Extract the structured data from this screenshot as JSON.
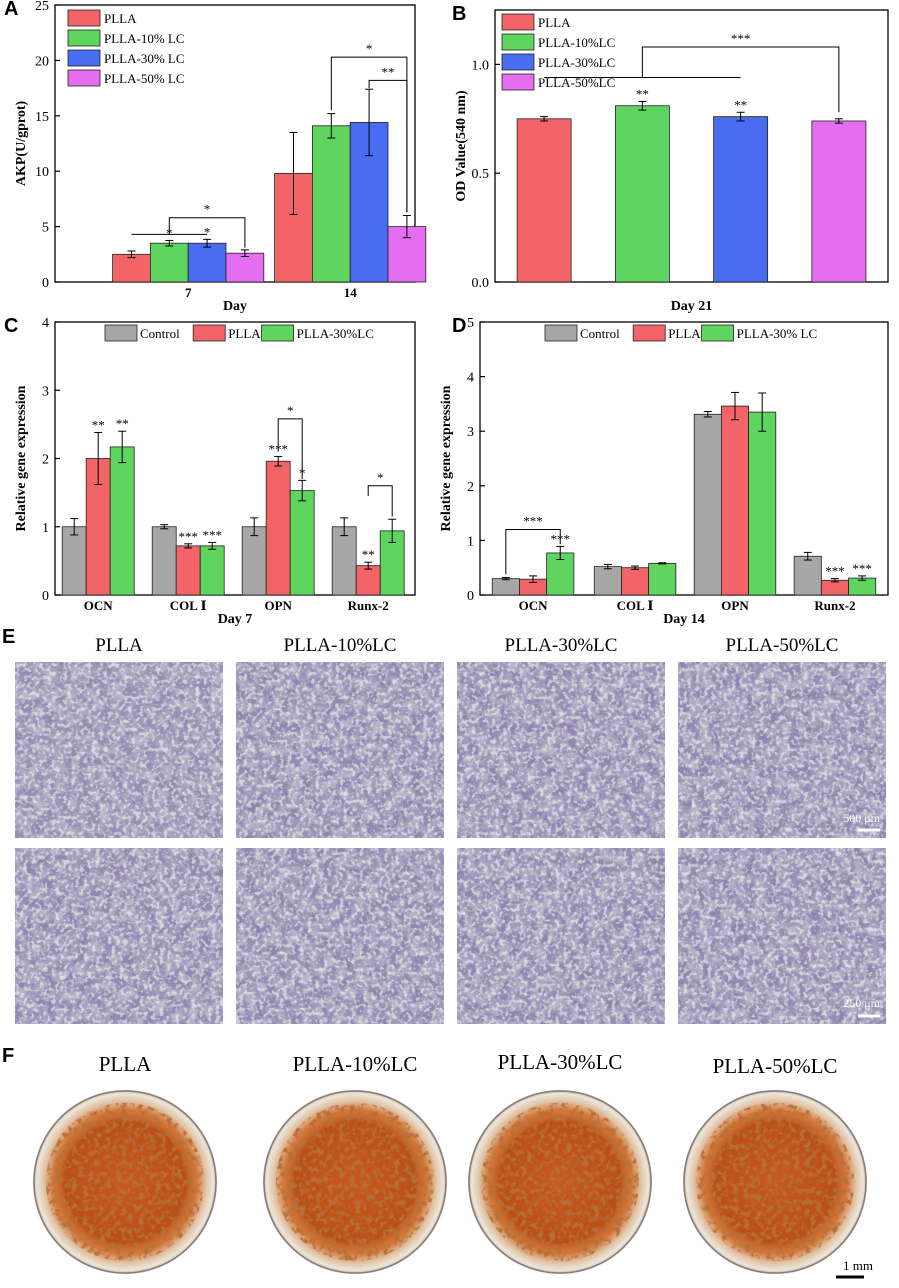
{
  "charts": [
    {
      "letter": "A",
      "chart_data": {
        "type": "bar",
        "categories": [
          "7",
          "14"
        ],
        "xlabel": "Day",
        "ylabel": "AKP(U/gprot)",
        "ylim": [
          0,
          25
        ],
        "yticks": [
          0,
          5,
          10,
          15,
          20,
          25
        ],
        "legend_position": "top-left",
        "series": [
          {
            "name": "PLLA",
            "color": "#f26468",
            "values": [
              2.5,
              9.8
            ],
            "errors": [
              0.3,
              3.7
            ]
          },
          {
            "name": "PLLA-10% LC",
            "color": "#5fd45f",
            "values": [
              3.5,
              14.1
            ],
            "errors": [
              0.25,
              1.1
            ]
          },
          {
            "name": "PLLA-30% LC",
            "color": "#4a6cf0",
            "values": [
              3.5,
              14.4
            ],
            "errors": [
              0.35,
              3.0
            ]
          },
          {
            "name": "PLLA-50% LC",
            "color": "#e56ef0",
            "values": [
              2.6,
              5.0
            ],
            "errors": [
              0.3,
              1.0
            ]
          }
        ],
        "bar_labels": [
          [
            "",
            ""
          ],
          [
            "*",
            ""
          ],
          [
            "*",
            ""
          ],
          [
            "",
            ""
          ]
        ],
        "brackets": [
          "*",
          "*",
          "**"
        ]
      }
    },
    {
      "letter": "B",
      "chart_data": {
        "type": "bar",
        "categories": [
          "Day 21"
        ],
        "xlabel": "Day 21",
        "ylabel": "OD Value(540 nm)",
        "ylim": [
          0,
          1.25
        ],
        "yticks": [
          0.0,
          0.5,
          1.0
        ],
        "legend_position": "top-left",
        "series": [
          {
            "name": "PLLA",
            "color": "#f26468",
            "values": [
              0.75
            ],
            "errors": [
              0.01
            ]
          },
          {
            "name": "PLLA-10%LC",
            "color": "#5fd45f",
            "values": [
              0.81
            ],
            "errors": [
              0.02
            ]
          },
          {
            "name": "PLLA-30%LC",
            "color": "#4a6cf0",
            "values": [
              0.76
            ],
            "errors": [
              0.02
            ]
          },
          {
            "name": "PLLA-50%LC",
            "color": "#e56ef0",
            "values": [
              0.74
            ],
            "errors": [
              0.01
            ]
          }
        ],
        "bar_labels": [
          [
            ""
          ],
          [
            "**"
          ],
          [
            "**"
          ],
          [
            ""
          ]
        ],
        "brackets": [
          "***"
        ]
      }
    },
    {
      "letter": "C",
      "chart_data": {
        "type": "bar",
        "categories": [
          "OCN",
          "COL Ⅰ",
          "OPN",
          "Runx-2"
        ],
        "xlabel": "Day 7",
        "ylabel": "Relative gene expression",
        "ylim": [
          0,
          4
        ],
        "yticks": [
          0,
          1,
          2,
          3,
          4
        ],
        "legend_position": "top",
        "series": [
          {
            "name": "Control",
            "color": "#a7a7a7",
            "values": [
              1.0,
              1.0,
              1.0,
              1.0
            ],
            "errors": [
              0.12,
              0.03,
              0.13,
              0.13
            ]
          },
          {
            "name": "PLLA",
            "color": "#f26468",
            "values": [
              2.0,
              0.72,
              1.96,
              0.43
            ],
            "errors": [
              0.38,
              0.03,
              0.07,
              0.05
            ]
          },
          {
            "name": "PLLA-30%LC",
            "color": "#5fd45f",
            "values": [
              2.17,
              0.72,
              1.53,
              0.94
            ],
            "errors": [
              0.23,
              0.05,
              0.15,
              0.17
            ]
          }
        ],
        "bar_labels": [
          [
            "",
            "",
            "",
            ""
          ],
          [
            "**",
            "***",
            "***",
            "**"
          ],
          [
            "**",
            "***",
            "*",
            ""
          ]
        ],
        "brackets": [
          "*",
          "*"
        ]
      }
    },
    {
      "letter": "D",
      "chart_data": {
        "type": "bar",
        "categories": [
          "OCN",
          "COL Ⅰ",
          "OPN",
          "Runx-2"
        ],
        "xlabel": "Day 14",
        "ylabel": "Relative gene expression",
        "ylim": [
          0,
          5
        ],
        "yticks": [
          0,
          1,
          2,
          3,
          4,
          5
        ],
        "legend_position": "top",
        "series": [
          {
            "name": "Control",
            "color": "#a7a7a7",
            "values": [
              0.3,
              0.52,
              3.31,
              0.71
            ],
            "errors": [
              0.02,
              0.04,
              0.05,
              0.07
            ]
          },
          {
            "name": "PLLA",
            "color": "#f26468",
            "values": [
              0.29,
              0.5,
              3.46,
              0.27
            ],
            "errors": [
              0.06,
              0.03,
              0.25,
              0.03
            ]
          },
          {
            "name": "PLLA-30% LC",
            "color": "#5fd45f",
            "values": [
              0.77,
              0.58,
              3.35,
              0.31
            ],
            "errors": [
              0.12,
              0.01,
              0.35,
              0.04
            ]
          }
        ],
        "bar_labels": [
          [
            "",
            "",
            "",
            ""
          ],
          [
            "",
            "",
            "",
            "***"
          ],
          [
            "***",
            "",
            "",
            "***"
          ]
        ],
        "brackets": [
          "***"
        ]
      }
    }
  ],
  "panel_e": {
    "letter": "E",
    "titles": [
      "PLLA",
      "PLLA-10%LC",
      "PLLA-30%LC",
      "PLLA-50%LC"
    ],
    "scale_top": "500 μm",
    "scale_bottom": "250 μm"
  },
  "panel_f": {
    "letter": "F",
    "titles": [
      "PLLA",
      "PLLA-10%LC",
      "PLLA-30%LC",
      "PLLA-50%LC"
    ],
    "scale": "1 mm"
  }
}
